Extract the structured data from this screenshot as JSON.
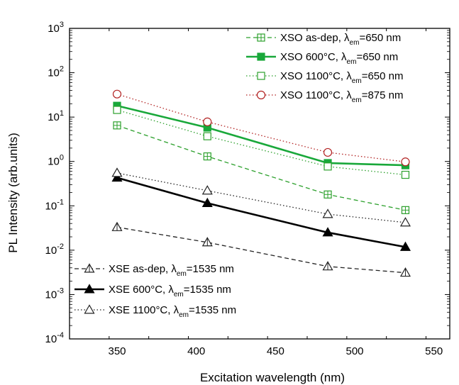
{
  "chart_data": {
    "type": "line",
    "xlabel": "Excitation wavelength (nm)",
    "ylabel": "PL Intensity (arb.units)",
    "xlim": [
      320,
      560
    ],
    "ylim": [
      0.0001,
      1000
    ],
    "yscale": "log",
    "grid": false,
    "x_ticks": [
      "350",
      "400",
      "450",
      "500",
      "550"
    ],
    "y_ticks": [
      {
        "base": "10",
        "exp": "-4"
      },
      {
        "base": "10",
        "exp": "-3"
      },
      {
        "base": "10",
        "exp": "-2"
      },
      {
        "base": "10",
        "exp": "-1"
      },
      {
        "base": "10",
        "exp": "0"
      },
      {
        "base": "10",
        "exp": "1"
      },
      {
        "base": "10",
        "exp": "2"
      },
      {
        "base": "10",
        "exp": "3"
      }
    ],
    "series": [
      {
        "key": "xso-asdep",
        "label_main": "XSO as-dep, λ",
        "label_sub": "em",
        "label_tail": "=650 nm",
        "color": "#2ca02c",
        "dash": "6,4",
        "width": 1.3,
        "marker": "square-cross",
        "legend_group": "top",
        "x": [
          350,
          407,
          483,
          532
        ],
        "y": [
          6.5,
          1.3,
          0.18,
          0.08
        ]
      },
      {
        "key": "xso-600",
        "label_main": "XSO 600°C, λ",
        "label_sub": "em",
        "label_tail": "=650 nm",
        "color": "#19a83a",
        "dash": "",
        "width": 2.6,
        "marker": "square-filled",
        "legend_group": "top",
        "x": [
          350,
          407,
          483,
          532
        ],
        "y": [
          18,
          5.8,
          0.92,
          0.82
        ]
      },
      {
        "key": "xso-1100-650",
        "label_main": "XSO 1100°C, λ",
        "label_sub": "em",
        "label_tail": "=650 nm",
        "color": "#2ca02c",
        "dash": "1.5,3",
        "width": 1.3,
        "marker": "square-open",
        "legend_group": "top",
        "x": [
          350,
          407,
          483,
          532
        ],
        "y": [
          14.5,
          3.7,
          0.77,
          0.5
        ]
      },
      {
        "key": "xso-1100-875",
        "label_main": "XSO 1100°C, λ",
        "label_sub": "em",
        "label_tail": "=875 nm",
        "color": "#b22222",
        "dash": "1.5,3",
        "width": 1.3,
        "marker": "circle-open",
        "legend_group": "top",
        "x": [
          350,
          407,
          483,
          532
        ],
        "y": [
          33,
          7.8,
          1.6,
          0.98
        ]
      },
      {
        "key": "xse-asdep",
        "label_main": "XSE as-dep, λ",
        "label_sub": "em",
        "label_tail": "=1535 nm",
        "color": "#222222",
        "dash": "6,4",
        "width": 1.3,
        "marker": "triangle-cross",
        "legend_group": "bottom",
        "x": [
          350,
          407,
          483,
          532
        ],
        "y": [
          0.033,
          0.015,
          0.0043,
          0.0031
        ]
      },
      {
        "key": "xse-600",
        "label_main": "XSE 600°C, λ",
        "label_sub": "em",
        "label_tail": "=1535 nm",
        "color": "#000000",
        "dash": "",
        "width": 2.6,
        "marker": "triangle-filled",
        "legend_group": "bottom",
        "x": [
          350,
          407,
          483,
          532
        ],
        "y": [
          0.43,
          0.115,
          0.025,
          0.0118
        ]
      },
      {
        "key": "xse-1100",
        "label_main": "XSE 1100°C, λ",
        "label_sub": "em",
        "label_tail": "=1535 nm",
        "color": "#222222",
        "dash": "1.5,3",
        "width": 1.3,
        "marker": "triangle-open",
        "legend_group": "bottom",
        "x": [
          350,
          407,
          483,
          532
        ],
        "y": [
          0.55,
          0.22,
          0.065,
          0.042
        ]
      }
    ]
  }
}
